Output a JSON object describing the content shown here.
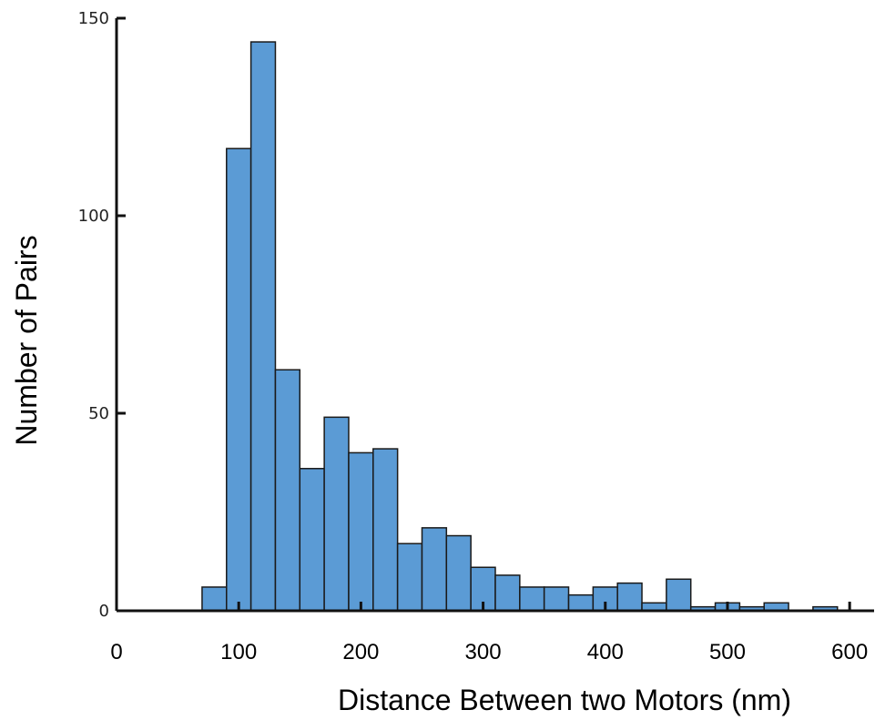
{
  "chart_data": {
    "type": "bar",
    "title": "",
    "xlabel": "Distance Between two Motors (nm)",
    "ylabel": "Number of Pairs",
    "xlim": [
      0,
      620
    ],
    "ylim": [
      0,
      150
    ],
    "x_ticks": [
      "0",
      "100",
      "200",
      "300",
      "400",
      "500",
      "600"
    ],
    "y_ticks": [
      "0",
      "50",
      "100",
      "150"
    ],
    "bin_width": 20,
    "bins": [
      {
        "start": 70,
        "value": 6
      },
      {
        "start": 90,
        "value": 117
      },
      {
        "start": 110,
        "value": 144
      },
      {
        "start": 130,
        "value": 61
      },
      {
        "start": 150,
        "value": 36
      },
      {
        "start": 170,
        "value": 49
      },
      {
        "start": 190,
        "value": 40
      },
      {
        "start": 210,
        "value": 41
      },
      {
        "start": 230,
        "value": 17
      },
      {
        "start": 250,
        "value": 21
      },
      {
        "start": 270,
        "value": 19
      },
      {
        "start": 290,
        "value": 11
      },
      {
        "start": 310,
        "value": 9
      },
      {
        "start": 330,
        "value": 6
      },
      {
        "start": 350,
        "value": 6
      },
      {
        "start": 370,
        "value": 4
      },
      {
        "start": 390,
        "value": 6
      },
      {
        "start": 410,
        "value": 7
      },
      {
        "start": 430,
        "value": 2
      },
      {
        "start": 450,
        "value": 8
      },
      {
        "start": 470,
        "value": 1
      },
      {
        "start": 490,
        "value": 2
      },
      {
        "start": 510,
        "value": 1
      },
      {
        "start": 530,
        "value": 2
      },
      {
        "start": 550,
        "value": 0
      },
      {
        "start": 570,
        "value": 1
      }
    ],
    "bar_color": "#5b9bd5",
    "bar_edge_color": "#1a1a1a",
    "grid": false,
    "legend": "none"
  }
}
